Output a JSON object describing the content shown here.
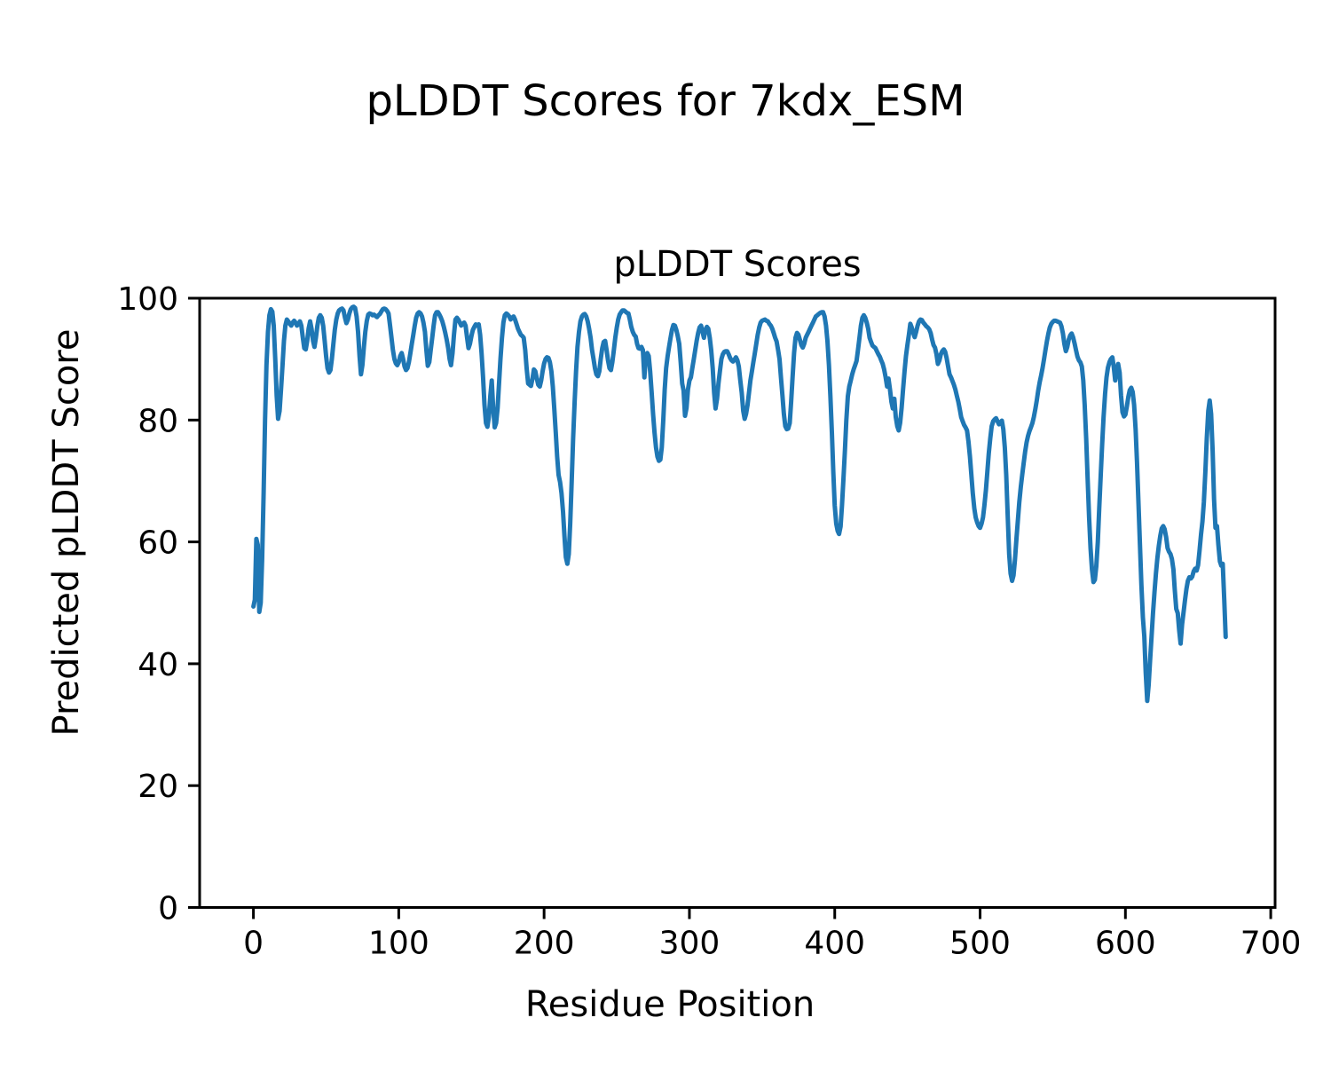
{
  "figure": {
    "background_color": "#ffffff",
    "text_color": "#000000"
  },
  "chart_data": {
    "type": "line",
    "suptitle": "pLDDT Scores for 7kdx_ESM",
    "axes_title": "pLDDT Scores",
    "xlabel": "Residue Position",
    "ylabel": "Predicted pLDDT Score",
    "x_ticks": [
      0,
      100,
      200,
      300,
      400,
      500,
      600,
      700
    ],
    "y_ticks": [
      0,
      20,
      40,
      60,
      80,
      100
    ],
    "xlim": [
      -37,
      703
    ],
    "ylim": [
      0,
      100
    ],
    "grid": false,
    "legend": "none",
    "line_color": "#1f77b4",
    "line_width": 5,
    "spine_color": "#000000",
    "series": [
      {
        "name": "pLDDT",
        "x_is_index": true,
        "values": [
          49.4,
          50.5,
          60.5,
          59.5,
          48.5,
          50,
          57,
          68,
          80,
          89,
          94.5,
          97.2,
          98.2,
          97.8,
          95.5,
          90,
          84,
          80.2,
          81.5,
          85,
          89,
          93,
          95.5,
          96.5,
          96.2,
          95.8,
          95.5,
          96,
          96.3,
          96,
          95.5,
          95.8,
          96.2,
          95.5,
          93.5,
          91.8,
          91.6,
          93,
          95,
          96.2,
          95,
          93,
          92,
          93.5,
          95.5,
          96.8,
          97.2,
          96.8,
          95.5,
          93,
          90.5,
          88.5,
          87.8,
          88.2,
          90,
          92.5,
          94.8,
          96.5,
          97.5,
          98,
          98.2,
          98.3,
          98,
          96.8,
          95.9,
          96.5,
          97.5,
          98.2,
          98.5,
          98.6,
          98.4,
          97,
          94.5,
          90.5,
          87.5,
          89,
          92,
          94.5,
          96.3,
          97.3,
          97.5,
          97.4,
          97.2,
          97.3,
          97.1,
          96.9,
          97.2,
          97.4,
          97.8,
          98.2,
          98.3,
          98.2,
          97.9,
          97.5,
          95.5,
          93.5,
          91.5,
          90,
          89.3,
          89,
          89.5,
          90.5,
          91,
          90,
          88.8,
          88.2,
          88.5,
          89.5,
          91,
          92.5,
          94,
          95.5,
          96.8,
          97.5,
          97.7,
          97.5,
          97,
          96,
          94.5,
          91.5,
          88.9,
          89.5,
          91.5,
          93.5,
          95.5,
          97.2,
          97.7,
          97.7,
          97.3,
          96.8,
          96.2,
          95.3,
          94.3,
          93.2,
          91.8,
          90,
          89,
          91,
          94,
          96.5,
          96.8,
          96.5,
          96,
          95.5,
          95.8,
          96,
          95.5,
          93.5,
          91.8,
          92.5,
          93.8,
          94.8,
          95.3,
          95.7,
          95.5,
          95.7,
          94,
          91,
          87,
          82.5,
          79.5,
          78.9,
          80.5,
          84,
          86.5,
          82,
          78.8,
          79.5,
          82,
          86,
          90,
          93.5,
          96,
          97.2,
          97.5,
          97.3,
          97,
          96.5,
          96.8,
          97,
          96.5,
          95.8,
          95,
          94.5,
          94,
          93.8,
          93.5,
          91.5,
          88.5,
          86,
          85.8,
          85.6,
          86.8,
          88.3,
          88,
          86.8,
          85.8,
          85.5,
          86.5,
          88,
          89.3,
          90,
          90.3,
          90.2,
          89.5,
          88,
          85.5,
          82,
          78,
          74,
          71,
          69.8,
          68,
          65,
          61,
          57.5,
          56.4,
          58,
          63,
          70,
          77,
          83,
          88,
          92,
          94.5,
          96.2,
          97,
          97.3,
          97.4,
          97,
          96.2,
          95,
          93.5,
          91.5,
          90,
          88.5,
          87.5,
          87.2,
          88,
          90,
          91.8,
          92.8,
          93,
          91.5,
          89.8,
          88.5,
          88.2,
          89.5,
          91.5,
          93.5,
          95.2,
          96.5,
          97.3,
          97.7,
          98,
          98,
          97.8,
          97.6,
          97.5,
          96.5,
          95.3,
          94.5,
          94,
          93.7,
          92.5,
          91.8,
          91.7,
          92,
          91.5,
          87,
          90.5,
          91,
          90.5,
          88,
          84.5,
          81,
          78,
          75.5,
          74,
          73.3,
          73.5,
          75.5,
          80,
          85,
          88.5,
          90.5,
          92,
          93.5,
          94.8,
          95.6,
          95.5,
          94.8,
          93.8,
          92.5,
          89.5,
          86,
          84.8,
          80.7,
          82,
          85,
          86.5,
          87,
          88.5,
          90,
          91.5,
          93,
          94.3,
          95.2,
          95.5,
          94.5,
          93.5,
          94.8,
          95.3,
          95,
          93.5,
          91.5,
          88.5,
          84.5,
          81.9,
          83.5,
          86,
          88,
          90,
          90.8,
          91.2,
          91.3,
          91.3,
          90.8,
          90.2,
          89.8,
          89.6,
          89.9,
          90.3,
          89.8,
          88.8,
          86.5,
          84.5,
          81.5,
          80.2,
          81,
          82.5,
          84.5,
          86.5,
          88,
          89.5,
          91,
          92.5,
          94,
          95.2,
          96,
          96.3,
          96.4,
          96.5,
          96.3,
          96.2,
          95.8,
          95.5,
          95,
          94.3,
          93.5,
          92.9,
          91.5,
          90,
          87,
          84,
          81,
          79,
          78.5,
          78.6,
          79.5,
          83,
          87,
          91,
          93.5,
          94.3,
          94,
          93.2,
          92.3,
          91.9,
          92.5,
          93.5,
          94,
          94.5,
          95,
          95.5,
          96,
          96.5,
          97,
          97.2,
          97.4,
          97.6,
          97.7,
          97.7,
          97,
          95.5,
          93,
          89,
          84,
          78,
          71.5,
          66,
          63,
          61.8,
          61.3,
          62.5,
          66,
          70.5,
          75,
          80,
          83.9,
          85.5,
          86.5,
          87.5,
          88.3,
          89,
          89.7,
          91.5,
          93.5,
          95.5,
          96.8,
          97.2,
          96.8,
          96,
          95,
          93.5,
          92.8,
          92.2,
          92,
          91.8,
          91.3,
          90.8,
          90.4,
          89.8,
          89.2,
          88.3,
          87,
          85.5,
          86.8,
          85,
          83,
          81.9,
          83.5,
          80.5,
          79,
          78.3,
          79.5,
          82,
          85,
          88,
          90.5,
          92.3,
          94,
          95.8,
          95.2,
          94.3,
          93.6,
          94.5,
          95.5,
          96.2,
          96.5,
          96.4,
          96,
          95.7,
          95.4,
          95.2,
          94.9,
          94.3,
          93.2,
          92.3,
          91.9,
          90.8,
          89.2,
          89.8,
          90.8,
          91.3,
          91.6,
          91.2,
          90.2,
          88.8,
          87.5,
          87,
          86.4,
          85.8,
          85,
          84,
          83,
          81.8,
          80.5,
          79.8,
          79.2,
          78.8,
          78.3,
          76.5,
          74,
          71,
          68,
          65.5,
          64,
          63.2,
          62.6,
          62.3,
          63,
          64,
          66,
          68.5,
          71.5,
          74.5,
          77,
          79,
          79.8,
          80.1,
          80.3,
          79.8,
          79.3,
          79.6,
          79.9,
          78.5,
          75.5,
          71,
          64.5,
          58,
          54.8,
          53.6,
          54.5,
          57,
          60.5,
          63.5,
          66.5,
          69,
          71,
          73,
          74.8,
          76.3,
          77.4,
          78.2,
          78.8,
          79.5,
          80.5,
          81.8,
          83.2,
          84.8,
          86.2,
          87.3,
          88.5,
          90,
          91.5,
          93,
          94.2,
          95.2,
          95.8,
          96.1,
          96.3,
          96.3,
          96.2,
          96.1,
          96,
          95.4,
          94.2,
          92.5,
          91.3,
          92,
          93.2,
          93.9,
          94.2,
          93.6,
          92.6,
          91.5,
          90.4,
          89.8,
          89.5,
          88.8,
          86.5,
          82.5,
          77,
          70.5,
          64,
          59,
          55.5,
          53.4,
          53.8,
          56,
          60,
          65.5,
          71,
          76,
          80.5,
          84.3,
          87,
          88.6,
          89.5,
          90,
          90.3,
          88.7,
          86.5,
          88,
          89.2,
          87.8,
          84,
          81.3,
          80.6,
          80.9,
          82.2,
          83.8,
          84.9,
          85.3,
          84.6,
          82.5,
          78.5,
          73,
          66.5,
          59.5,
          53,
          47.6,
          44.5,
          38.5,
          33.9,
          36.5,
          40.5,
          44.5,
          48.3,
          51.8,
          54.8,
          57.3,
          59.4,
          61,
          62.2,
          62.6,
          62.1,
          60.8,
          59,
          58.4,
          58,
          57.2,
          55.5,
          52,
          49,
          48.3,
          45.5,
          43.3,
          46.5,
          48.4,
          50.5,
          52.3,
          53.6,
          54.2,
          54,
          54.3,
          55.2,
          55.6,
          55.3,
          56.2,
          58.5,
          61.2,
          63.3,
          66.5,
          71.5,
          77,
          81.5,
          83.2,
          81,
          75,
          67,
          62.3,
          62.6,
          59.5,
          56.8,
          56.1,
          56.4,
          50.5,
          44.4
        ]
      }
    ]
  }
}
